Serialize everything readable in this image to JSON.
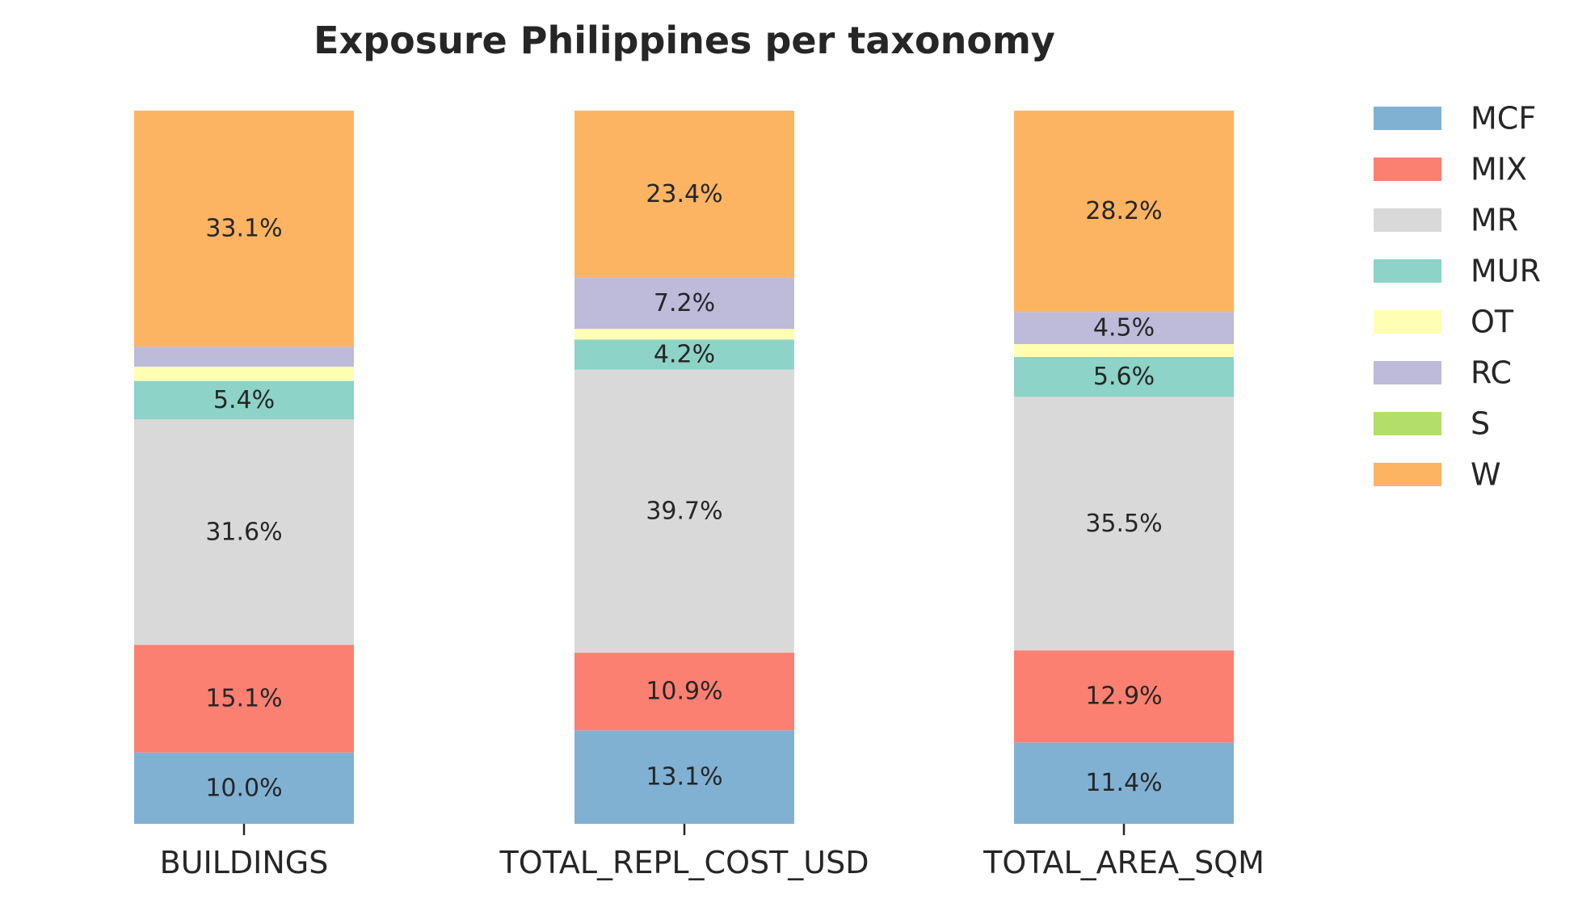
{
  "chart_data": {
    "type": "bar",
    "stacked": true,
    "title": "Exposure Philippines per taxonomy",
    "xlabel": "",
    "ylabel": "",
    "ylim": [
      0,
      100
    ],
    "grid": false,
    "legend_position": "right",
    "categories": [
      "BUILDINGS",
      "TOTAL_REPL_COST_USD",
      "TOTAL_AREA_SQM"
    ],
    "series": [
      {
        "name": "MCF",
        "color": "#80b1d3",
        "values": [
          10.0,
          13.1,
          11.4
        ],
        "labels": [
          "10.0%",
          "13.1%",
          "11.4%"
        ]
      },
      {
        "name": "MIX",
        "color": "#fb8072",
        "values": [
          15.1,
          10.9,
          12.9
        ],
        "labels": [
          "15.1%",
          "10.9%",
          "12.9%"
        ]
      },
      {
        "name": "MR",
        "color": "#d9d9d9",
        "values": [
          31.6,
          39.7,
          35.5
        ],
        "labels": [
          "31.6%",
          "39.7%",
          "35.5%"
        ]
      },
      {
        "name": "MUR",
        "color": "#8dd3c7",
        "values": [
          5.4,
          4.2,
          5.6
        ],
        "labels": [
          "5.4%",
          "4.2%",
          "5.6%"
        ]
      },
      {
        "name": "OT",
        "color": "#ffffb3",
        "values": [
          2.0,
          1.5,
          1.8
        ],
        "labels": [
          "",
          "",
          ""
        ]
      },
      {
        "name": "RC",
        "color": "#bebada",
        "values": [
          2.8,
          7.2,
          4.5
        ],
        "labels": [
          "",
          "7.2%",
          "4.5%"
        ]
      },
      {
        "name": "S",
        "color": "#b3de69",
        "values": [
          0.0,
          0.0,
          0.0
        ],
        "labels": [
          "",
          "",
          ""
        ]
      },
      {
        "name": "W",
        "color": "#fdb462",
        "values": [
          33.1,
          23.4,
          28.2
        ],
        "labels": [
          "33.1%",
          "23.4%",
          "28.2%"
        ]
      }
    ]
  }
}
